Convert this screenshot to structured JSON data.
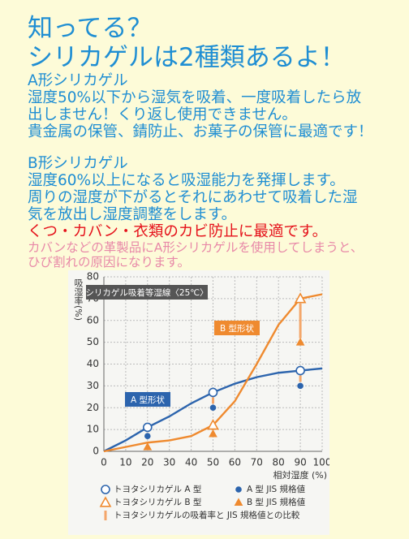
{
  "header": {
    "title_lines": [
      "知ってる？",
      "シリカゲルは2種類あるよ！"
    ]
  },
  "section_a": {
    "heading": "A形シリカゲル",
    "lines": [
      "湿度50%以下から湿気を吸着、一度吸着したら放",
      "出しません！くり返し使用できません。",
      "貴金属の保管、錆防止、お菓子の保管に最適です！"
    ]
  },
  "section_b": {
    "heading": "B形シリカゲル",
    "lines": [
      "湿度60%以上になると吸湿能力を発揮します。",
      "周りの湿度が下がるとそれにあわせて吸着した湿",
      "気を放出し湿度調整をします。"
    ],
    "highlight": "くつ・カバン・衣類のカビ防止に最適です。",
    "note_lines": [
      "カバンなどの革製品にA形シリカゲルを使用してしまうと、",
      "ひび割れの原因になります。"
    ]
  },
  "chart": {
    "type": "line",
    "title": "シリカゲル吸着等湿線〈25℃〉",
    "y_label": "吸湿率(%)",
    "x_label": "相対湿度 (%)",
    "xlim": [
      0,
      100
    ],
    "xticks": [
      0,
      10,
      20,
      30,
      40,
      50,
      60,
      70,
      80,
      90,
      100
    ],
    "ylim": [
      0,
      80
    ],
    "yticks": [
      0,
      10,
      20,
      30,
      40,
      50,
      60,
      70,
      80
    ],
    "grid": true,
    "curves": [
      {
        "label": "A 型形状",
        "color": "#2c64ad",
        "x": [
          0,
          10,
          20,
          30,
          40,
          50,
          60,
          70,
          80,
          90,
          100
        ],
        "values": [
          0,
          5,
          11,
          16,
          22,
          27,
          31,
          34,
          36,
          37,
          38
        ]
      },
      {
        "label": "B 型形状",
        "color": "#ef8a2f",
        "x": [
          0,
          10,
          20,
          30,
          40,
          50,
          60,
          70,
          80,
          90,
          100
        ],
        "values": [
          0,
          2,
          4,
          5,
          7,
          12,
          23,
          40,
          58,
          70,
          72
        ]
      }
    ],
    "series": [
      {
        "name": "トヨタシリカゲル A 型",
        "color": "#2c64ad",
        "marker": "circle-open",
        "x": [
          20,
          50,
          90
        ],
        "values": [
          11,
          27,
          37
        ]
      },
      {
        "name": "A 型 JIS 規格値",
        "color": "#2c64ad",
        "marker": "circle",
        "x": [
          20,
          50,
          90
        ],
        "values": [
          7,
          20,
          30
        ]
      },
      {
        "name": "トヨタシリカゲル B 型",
        "color": "#ef8a2f",
        "marker": "triangle-open",
        "x": [
          50,
          90
        ],
        "values": [
          12,
          70
        ]
      },
      {
        "name": "B 型 JIS 規格値",
        "color": "#ef8a2f",
        "marker": "triangle",
        "x": [
          20,
          50,
          90
        ],
        "values": [
          2,
          8,
          50
        ]
      }
    ],
    "comparison_label": "トヨタシリカゲルの吸着率と JIS 規格値との比較"
  }
}
